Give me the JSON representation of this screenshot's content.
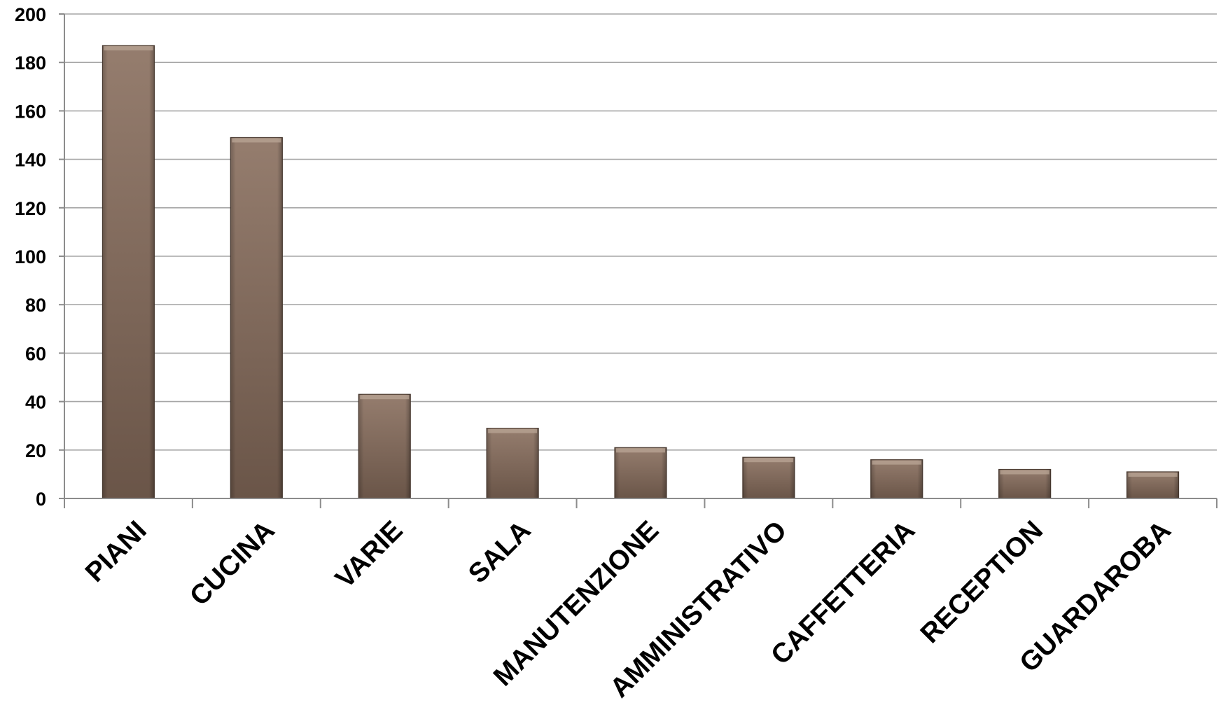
{
  "chart_data": {
    "type": "bar",
    "categories": [
      "PIANI",
      "CUCINA",
      "VARIE",
      "SALA",
      "MANUTENZIONE",
      "AMMINISTRATIVO",
      "CAFFETTERIA",
      "RECEPTION",
      "GUARDAROBA"
    ],
    "values": [
      187,
      149,
      43,
      29,
      21,
      17,
      16,
      12,
      11
    ],
    "title": "",
    "xlabel": "",
    "ylabel": "",
    "ylim": [
      0,
      200
    ],
    "yticks": [
      "0",
      "20",
      "40",
      "60",
      "80",
      "100",
      "120",
      "140",
      "160",
      "180",
      "200"
    ],
    "grid": true,
    "legend": "none",
    "colors": {
      "bar_light": "#957d6e",
      "bar_dark": "#6a5548",
      "bar_edge": "#4f3f35",
      "grid": "#a6a6a6",
      "axis": "#8c8c8c"
    }
  }
}
